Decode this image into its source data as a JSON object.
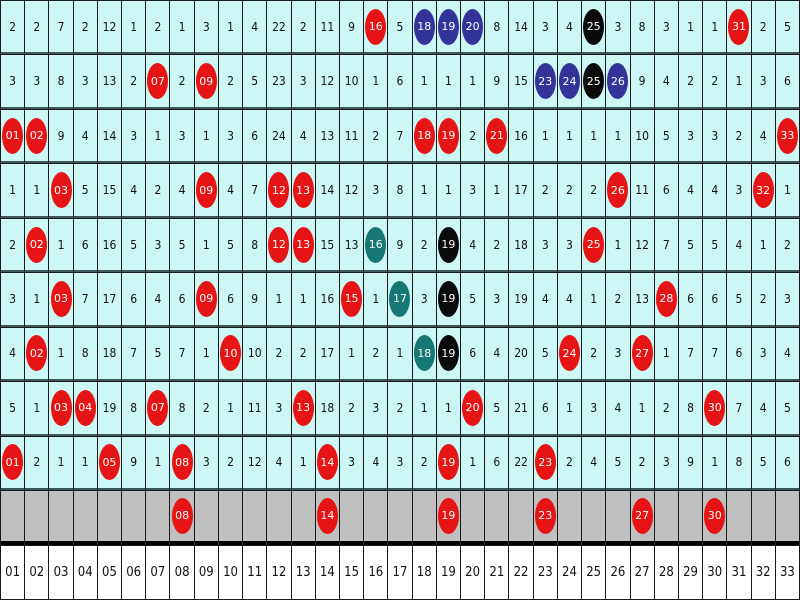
{
  "chart_data": {
    "type": "table",
    "colors": {
      "red": "#e61414",
      "blue": "#33339a",
      "black": "#0a0a0a",
      "teal": "#167774",
      "cell": "#ccf7f5",
      "gray": "#c0c0c0"
    },
    "columns": [
      "01",
      "02",
      "03",
      "04",
      "05",
      "06",
      "07",
      "08",
      "09",
      "10",
      "11",
      "12",
      "13",
      "14",
      "15",
      "16",
      "17",
      "18",
      "19",
      "20",
      "21",
      "22",
      "23",
      "24",
      "25",
      "26",
      "27",
      "28",
      "29",
      "30",
      "31",
      "32",
      "33"
    ],
    "rows": [
      [
        "2",
        "2",
        "7",
        "2",
        "12",
        "1",
        "2",
        "1",
        "3",
        "1",
        "4",
        "22",
        "2",
        "11",
        "9",
        {
          "ball": "16",
          "color": "red"
        },
        "5",
        {
          "ball": "18",
          "color": "blue"
        },
        {
          "ball": "19",
          "color": "blue"
        },
        {
          "ball": "20",
          "color": "blue"
        },
        "8",
        "14",
        "3",
        "4",
        {
          "ball": "25",
          "color": "black"
        },
        "3",
        "8",
        "3",
        "1",
        "1",
        {
          "ball": "31",
          "color": "red"
        },
        "2",
        "5"
      ],
      [
        "3",
        "3",
        "8",
        "3",
        "13",
        "2",
        {
          "ball": "07",
          "color": "red"
        },
        "2",
        {
          "ball": "09",
          "color": "red"
        },
        "2",
        "5",
        "23",
        "3",
        "12",
        "10",
        "1",
        "6",
        "1",
        "1",
        "1",
        "9",
        "15",
        {
          "ball": "23",
          "color": "blue"
        },
        {
          "ball": "24",
          "color": "blue"
        },
        {
          "ball": "25",
          "color": "black"
        },
        {
          "ball": "26",
          "color": "blue"
        },
        "9",
        "4",
        "2",
        "2",
        "1",
        "3",
        "6"
      ],
      [
        {
          "ball": "01",
          "color": "red"
        },
        {
          "ball": "02",
          "color": "red"
        },
        "9",
        "4",
        "14",
        "3",
        "1",
        "3",
        "1",
        "3",
        "6",
        "24",
        "4",
        "13",
        "11",
        "2",
        "7",
        {
          "ball": "18",
          "color": "red"
        },
        {
          "ball": "19",
          "color": "red"
        },
        "2",
        {
          "ball": "21",
          "color": "red"
        },
        "16",
        "1",
        "1",
        "1",
        "1",
        "10",
        "5",
        "3",
        "3",
        "2",
        "4",
        {
          "ball": "33",
          "color": "red"
        }
      ],
      [
        "1",
        "1",
        {
          "ball": "03",
          "color": "red"
        },
        "5",
        "15",
        "4",
        "2",
        "4",
        {
          "ball": "09",
          "color": "red"
        },
        "4",
        "7",
        {
          "ball": "12",
          "color": "red"
        },
        {
          "ball": "13",
          "color": "red"
        },
        "14",
        "12",
        "3",
        "8",
        "1",
        "1",
        "3",
        "1",
        "17",
        "2",
        "2",
        "2",
        {
          "ball": "26",
          "color": "red"
        },
        "11",
        "6",
        "4",
        "4",
        "3",
        {
          "ball": "32",
          "color": "red"
        },
        "1"
      ],
      [
        "2",
        {
          "ball": "02",
          "color": "red"
        },
        "1",
        "6",
        "16",
        "5",
        "3",
        "5",
        "1",
        "5",
        "8",
        {
          "ball": "12",
          "color": "red"
        },
        {
          "ball": "13",
          "color": "red"
        },
        "15",
        "13",
        {
          "ball": "16",
          "color": "teal"
        },
        "9",
        "2",
        {
          "ball": "19",
          "color": "black"
        },
        "4",
        "2",
        "18",
        "3",
        "3",
        {
          "ball": "25",
          "color": "red"
        },
        "1",
        "12",
        "7",
        "5",
        "5",
        "4",
        "1",
        "2"
      ],
      [
        "3",
        "1",
        {
          "ball": "03",
          "color": "red"
        },
        "7",
        "17",
        "6",
        "4",
        "6",
        {
          "ball": "09",
          "color": "red"
        },
        "6",
        "9",
        "1",
        "1",
        "16",
        {
          "ball": "15",
          "color": "red"
        },
        "1",
        {
          "ball": "17",
          "color": "teal"
        },
        "3",
        {
          "ball": "19",
          "color": "black"
        },
        "5",
        "3",
        "19",
        "4",
        "4",
        "1",
        "2",
        "13",
        {
          "ball": "28",
          "color": "red"
        },
        "6",
        "6",
        "5",
        "2",
        "3"
      ],
      [
        "4",
        {
          "ball": "02",
          "color": "red"
        },
        "1",
        "8",
        "18",
        "7",
        "5",
        "7",
        "1",
        {
          "ball": "10",
          "color": "red"
        },
        "10",
        "2",
        "2",
        "17",
        "1",
        "2",
        "1",
        {
          "ball": "18",
          "color": "teal"
        },
        {
          "ball": "19",
          "color": "black"
        },
        "6",
        "4",
        "20",
        "5",
        {
          "ball": "24",
          "color": "red"
        },
        "2",
        "3",
        {
          "ball": "27",
          "color": "red"
        },
        "1",
        "7",
        "7",
        "6",
        "3",
        "4"
      ],
      [
        "5",
        "1",
        {
          "ball": "03",
          "color": "red"
        },
        {
          "ball": "04",
          "color": "red"
        },
        "19",
        "8",
        {
          "ball": "07",
          "color": "red"
        },
        "8",
        "2",
        "1",
        "11",
        "3",
        {
          "ball": "13",
          "color": "red"
        },
        "18",
        "2",
        "3",
        "2",
        "1",
        "1",
        {
          "ball": "20",
          "color": "red"
        },
        "5",
        "21",
        "6",
        "1",
        "3",
        "4",
        "1",
        "2",
        "8",
        {
          "ball": "30",
          "color": "red"
        },
        "7",
        "4",
        "5"
      ],
      [
        {
          "ball": "01",
          "color": "red"
        },
        "2",
        "1",
        "1",
        {
          "ball": "05",
          "color": "red"
        },
        "9",
        "1",
        {
          "ball": "08",
          "color": "red"
        },
        "3",
        "2",
        "12",
        "4",
        "1",
        {
          "ball": "14",
          "color": "red"
        },
        "3",
        "4",
        "3",
        "2",
        {
          "ball": "19",
          "color": "red"
        },
        "1",
        "6",
        "22",
        {
          "ball": "23",
          "color": "red"
        },
        "2",
        "4",
        "5",
        "2",
        "3",
        "9",
        "1",
        "8",
        "5",
        "6"
      ]
    ],
    "latest_row": [
      "",
      "",
      "",
      "",
      "",
      "",
      "",
      {
        "ball": "08",
        "color": "red"
      },
      "",
      "",
      "",
      "",
      "",
      {
        "ball": "14",
        "color": "red"
      },
      "",
      "",
      "",
      "",
      {
        "ball": "19",
        "color": "red"
      },
      "",
      "",
      "",
      {
        "ball": "23",
        "color": "red"
      },
      "",
      "",
      "",
      {
        "ball": "27",
        "color": "red"
      },
      "",
      "",
      {
        "ball": "30",
        "color": "red"
      },
      "",
      "",
      ""
    ]
  }
}
